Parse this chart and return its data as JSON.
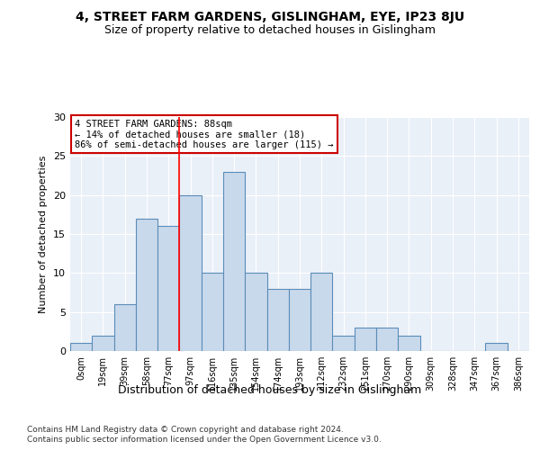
{
  "title": "4, STREET FARM GARDENS, GISLINGHAM, EYE, IP23 8JU",
  "subtitle": "Size of property relative to detached houses in Gislingham",
  "xlabel": "Distribution of detached houses by size in Gislingham",
  "ylabel": "Number of detached properties",
  "bar_color": "#c9d9ec",
  "bar_edge_color": "#5b8db8",
  "background_color": "#eaf0f8",
  "categories": [
    "0sqm",
    "19sqm",
    "39sqm",
    "58sqm",
    "77sqm",
    "97sqm",
    "116sqm",
    "135sqm",
    "154sqm",
    "174sqm",
    "193sqm",
    "212sqm",
    "232sqm",
    "251sqm",
    "270sqm",
    "290sqm",
    "309sqm",
    "328sqm",
    "347sqm",
    "367sqm",
    "386sqm"
  ],
  "values": [
    1,
    2,
    6,
    17,
    16,
    20,
    10,
    23,
    10,
    8,
    8,
    10,
    2,
    3,
    3,
    2,
    0,
    0,
    0,
    1,
    0
  ],
  "ylim": [
    0,
    30
  ],
  "yticks": [
    0,
    5,
    10,
    15,
    20,
    25,
    30
  ],
  "property_line_x": 4.5,
  "annotation_line1": "4 STREET FARM GARDENS: 88sqm",
  "annotation_line2": "← 14% of detached houses are smaller (18)",
  "annotation_line3": "86% of semi-detached houses are larger (115) →",
  "annotation_box_color": "#ffffff",
  "annotation_border_color": "#cc0000",
  "footnote1": "Contains HM Land Registry data © Crown copyright and database right 2024.",
  "footnote2": "Contains public sector information licensed under the Open Government Licence v3.0."
}
